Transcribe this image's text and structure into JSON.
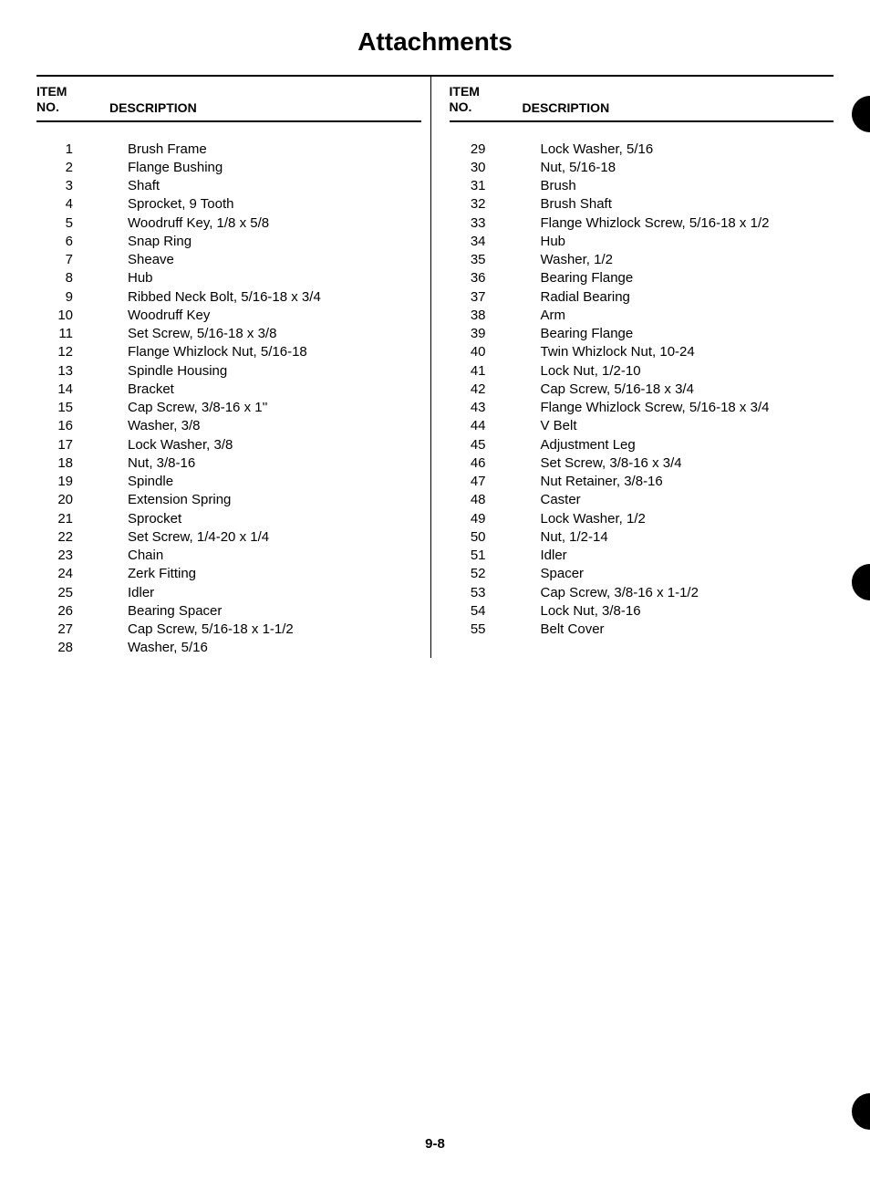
{
  "title": "Attachments",
  "headers": {
    "item_no_line1": "ITEM",
    "item_no_line2": "NO.",
    "description": "DESCRIPTION"
  },
  "column_left": [
    {
      "no": "1",
      "desc": "Brush Frame"
    },
    {
      "no": "2",
      "desc": "Flange Bushing"
    },
    {
      "no": "3",
      "desc": "Shaft"
    },
    {
      "no": "4",
      "desc": "Sprocket, 9 Tooth"
    },
    {
      "no": "5",
      "desc": "Woodruff Key, 1/8 x 5/8"
    },
    {
      "no": "6",
      "desc": "Snap Ring"
    },
    {
      "no": "7",
      "desc": "Sheave"
    },
    {
      "no": "8",
      "desc": "Hub"
    },
    {
      "no": "9",
      "desc": "Ribbed Neck Bolt, 5/16-18 x 3/4"
    },
    {
      "no": "10",
      "desc": "Woodruff Key"
    },
    {
      "no": "11",
      "desc": "Set Screw, 5/16-18 x 3/8"
    },
    {
      "no": "12",
      "desc": "Flange Whizlock Nut, 5/16-18"
    },
    {
      "no": "13",
      "desc": "Spindle Housing"
    },
    {
      "no": "14",
      "desc": "Bracket"
    },
    {
      "no": "15",
      "desc": "Cap Screw, 3/8-16 x 1''"
    },
    {
      "no": "16",
      "desc": "Washer, 3/8"
    },
    {
      "no": "17",
      "desc": "Lock Washer, 3/8"
    },
    {
      "no": "18",
      "desc": "Nut, 3/8-16"
    },
    {
      "no": "19",
      "desc": "Spindle"
    },
    {
      "no": "20",
      "desc": "Extension Spring"
    },
    {
      "no": "21",
      "desc": "Sprocket"
    },
    {
      "no": "22",
      "desc": "Set Screw, 1/4-20 x 1/4"
    },
    {
      "no": "23",
      "desc": "Chain"
    },
    {
      "no": "24",
      "desc": "Zerk Fitting"
    },
    {
      "no": "25",
      "desc": "Idler"
    },
    {
      "no": "26",
      "desc": "Bearing Spacer"
    },
    {
      "no": "27",
      "desc": "Cap Screw, 5/16-18 x 1-1/2"
    },
    {
      "no": "28",
      "desc": "Washer, 5/16"
    }
  ],
  "column_right": [
    {
      "no": "29",
      "desc": "Lock Washer, 5/16"
    },
    {
      "no": "30",
      "desc": "Nut, 5/16-18"
    },
    {
      "no": "31",
      "desc": "Brush"
    },
    {
      "no": "32",
      "desc": "Brush Shaft"
    },
    {
      "no": "33",
      "desc": "Flange Whizlock Screw, 5/16-18 x 1/2"
    },
    {
      "no": "34",
      "desc": "Hub"
    },
    {
      "no": "35",
      "desc": "Washer, 1/2"
    },
    {
      "no": "36",
      "desc": "Bearing Flange"
    },
    {
      "no": "37",
      "desc": "Radial Bearing"
    },
    {
      "no": "38",
      "desc": "Arm"
    },
    {
      "no": "39",
      "desc": "Bearing Flange"
    },
    {
      "no": "40",
      "desc": "Twin Whizlock Nut, 10-24"
    },
    {
      "no": "41",
      "desc": "Lock Nut, 1/2-10"
    },
    {
      "no": "42",
      "desc": "Cap Screw, 5/16-18 x 3/4"
    },
    {
      "no": "43",
      "desc": "Flange Whizlock Screw, 5/16-18 x 3/4"
    },
    {
      "no": "44",
      "desc": "V Belt"
    },
    {
      "no": "45",
      "desc": "Adjustment Leg"
    },
    {
      "no": "46",
      "desc": "Set Screw, 3/8-16 x 3/4"
    },
    {
      "no": "47",
      "desc": "Nut Retainer, 3/8-16"
    },
    {
      "no": "48",
      "desc": "Caster"
    },
    {
      "no": "49",
      "desc": "Lock Washer, 1/2"
    },
    {
      "no": "50",
      "desc": "Nut, 1/2-14"
    },
    {
      "no": "51",
      "desc": "Idler"
    },
    {
      "no": "52",
      "desc": "Spacer"
    },
    {
      "no": "53",
      "desc": "Cap Screw, 3/8-16 x 1-1/2"
    },
    {
      "no": "54",
      "desc": "Lock Nut, 3/8-16"
    },
    {
      "no": "55",
      "desc": "Belt Cover"
    }
  ],
  "page_number": "9-8"
}
